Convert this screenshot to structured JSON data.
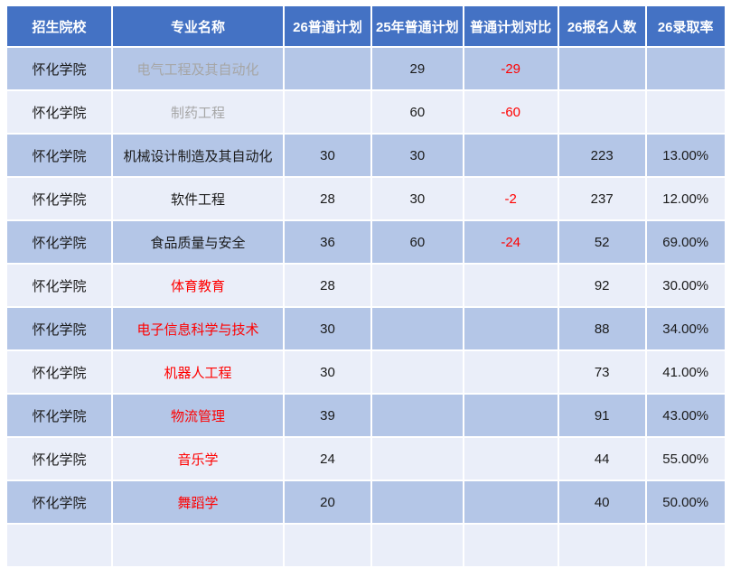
{
  "table": {
    "columns": [
      {
        "key": "school",
        "label": "招生院校"
      },
      {
        "key": "major",
        "label": "专业名称"
      },
      {
        "key": "plan26",
        "label": "26普通计划"
      },
      {
        "key": "plan25",
        "label": "25年普通计划"
      },
      {
        "key": "diff",
        "label": "普通计划对比"
      },
      {
        "key": "applicants26",
        "label": "26报名人数"
      },
      {
        "key": "rate26",
        "label": "26录取率"
      }
    ],
    "rows": [
      {
        "school": "怀化学院",
        "major": "电气工程及其自动化",
        "major_style": "muted",
        "plan26": "",
        "plan25": "29",
        "diff": "-29",
        "applicants26": "",
        "rate26": ""
      },
      {
        "school": "怀化学院",
        "major": "制药工程",
        "major_style": "muted",
        "plan26": "",
        "plan25": "60",
        "diff": "-60",
        "applicants26": "",
        "rate26": ""
      },
      {
        "school": "怀化学院",
        "major": "机械设计制造及其自动化",
        "major_style": "normal",
        "plan26": "30",
        "plan25": "30",
        "diff": "",
        "applicants26": "223",
        "rate26": "13.00%"
      },
      {
        "school": "怀化学院",
        "major": "软件工程",
        "major_style": "normal",
        "plan26": "28",
        "plan25": "30",
        "diff": "-2",
        "applicants26": "237",
        "rate26": "12.00%"
      },
      {
        "school": "怀化学院",
        "major": "食品质量与安全",
        "major_style": "normal",
        "plan26": "36",
        "plan25": "60",
        "diff": "-24",
        "applicants26": "52",
        "rate26": "69.00%"
      },
      {
        "school": "怀化学院",
        "major": "体育教育",
        "major_style": "red",
        "plan26": "28",
        "plan25": "",
        "diff": "",
        "applicants26": "92",
        "rate26": "30.00%"
      },
      {
        "school": "怀化学院",
        "major": "电子信息科学与技术",
        "major_style": "red",
        "plan26": "30",
        "plan25": "",
        "diff": "",
        "applicants26": "88",
        "rate26": "34.00%"
      },
      {
        "school": "怀化学院",
        "major": "机器人工程",
        "major_style": "red",
        "plan26": "30",
        "plan25": "",
        "diff": "",
        "applicants26": "73",
        "rate26": "41.00%"
      },
      {
        "school": "怀化学院",
        "major": "物流管理",
        "major_style": "red",
        "plan26": "39",
        "plan25": "",
        "diff": "",
        "applicants26": "91",
        "rate26": "43.00%"
      },
      {
        "school": "怀化学院",
        "major": "音乐学",
        "major_style": "red",
        "plan26": "24",
        "plan25": "",
        "diff": "",
        "applicants26": "44",
        "rate26": "55.00%"
      },
      {
        "school": "怀化学院",
        "major": "舞蹈学",
        "major_style": "red",
        "plan26": "20",
        "plan25": "",
        "diff": "",
        "applicants26": "40",
        "rate26": "50.00%"
      },
      {
        "school": "",
        "major": "",
        "major_style": "normal",
        "plan26": "",
        "plan25": "",
        "diff": "",
        "applicants26": "",
        "rate26": ""
      }
    ]
  },
  "colors": {
    "header_bg": "#4472C4",
    "header_text": "#FFFFFF",
    "row_lavender": "#B4C6E7",
    "row_light": "#EAEEF9",
    "text_black": "#1A1A1A",
    "text_red": "#FF0000",
    "text_muted": "#A6A6A6",
    "gridline": "#FFFFFF"
  }
}
